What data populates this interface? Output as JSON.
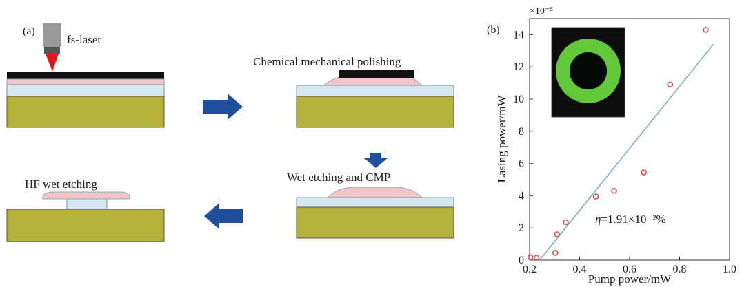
{
  "panel_a": {
    "label": "(a)",
    "laser_label": "fs-laser",
    "step2_label": "Chemical mechanical polishing",
    "step3_label": "Wet etching and CMP",
    "step4_label": "HF wet etching",
    "colors": {
      "substrate": "#b5b13a",
      "silica": "#d6e7f2",
      "thin_film": "#f2c6c9",
      "mask": "#111111",
      "arrow": "#1f4e9a",
      "laser_body": "#555555",
      "laser_beam": "#e01a1a"
    }
  },
  "panel_b": {
    "label": "(b)",
    "inset_image": "green-ring-microdisk-photo",
    "eta_prefix": "η",
    "eta_value": "=1.91×10⁻²%",
    "colors": {
      "points": "#d24a4a",
      "fit_line": "#7aa6c8",
      "inset_ring": "#63c83a"
    }
  },
  "chart_data": {
    "type": "scatter",
    "xlabel": "Pump power/mW",
    "ylabel": "Lasing power/mW",
    "y_multiplier_label": "×10⁻⁵",
    "xlim": [
      0.2,
      1.0
    ],
    "ylim": [
      0,
      15
    ],
    "x_ticks": [
      0.2,
      0.4,
      0.6,
      0.8,
      1.0
    ],
    "x_tick_labels": [
      "0.2",
      "0.4",
      "0.6",
      "0.8",
      "1.0"
    ],
    "y_ticks": [
      0,
      2,
      4,
      6,
      8,
      10,
      12,
      14
    ],
    "y_tick_labels": [
      "0",
      "2",
      "4",
      "6",
      "8",
      "10",
      "12",
      "14"
    ],
    "series": [
      {
        "x": [
          0.203,
          0.228,
          0.303,
          0.31,
          0.345,
          0.465,
          0.538,
          0.657,
          0.762,
          0.905
        ],
        "y": [
          0.18,
          0.15,
          0.45,
          1.6,
          2.35,
          3.95,
          4.3,
          5.45,
          10.9,
          14.3
        ]
      }
    ],
    "fit_line": {
      "x": [
        0.24,
        0.935
      ],
      "y": [
        0,
        13.4
      ]
    }
  }
}
